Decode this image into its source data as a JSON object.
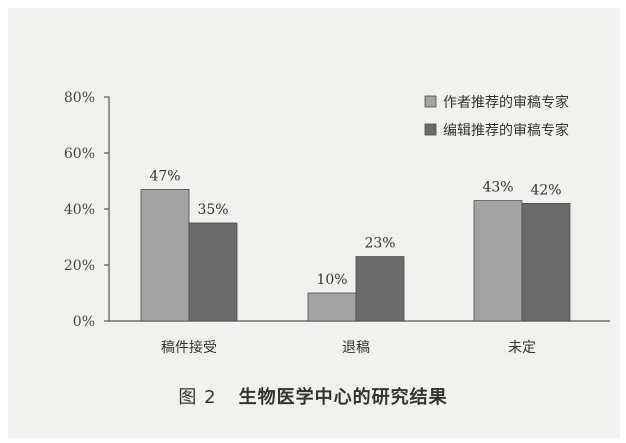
{
  "caption": {
    "figure_label": "图 2",
    "title": "生物医学中心的研究结果"
  },
  "colors": {
    "series_author": "#a3a3a3",
    "series_editor": "#6b6b6b",
    "axis": "#555555",
    "background": "#f1f1ef"
  },
  "chart_data": {
    "type": "bar",
    "categories": [
      "稿件接受",
      "退稿",
      "未定"
    ],
    "series": [
      {
        "name": "作者推荐的审稿专家",
        "values": [
          47,
          10,
          43
        ],
        "labels": [
          "47%",
          "10%",
          "43%"
        ]
      },
      {
        "name": "编辑推荐的审稿专家",
        "values": [
          35,
          23,
          42
        ],
        "labels": [
          "35%",
          "23%",
          "42%"
        ]
      }
    ],
    "ylim": [
      0,
      80
    ],
    "yticks": [
      0,
      20,
      40,
      60,
      80
    ],
    "ytick_labels": [
      "0%",
      "20%",
      "40%",
      "60%",
      "80%"
    ],
    "legend_position": "top-right",
    "grid": false,
    "xlabel": "",
    "ylabel": ""
  }
}
